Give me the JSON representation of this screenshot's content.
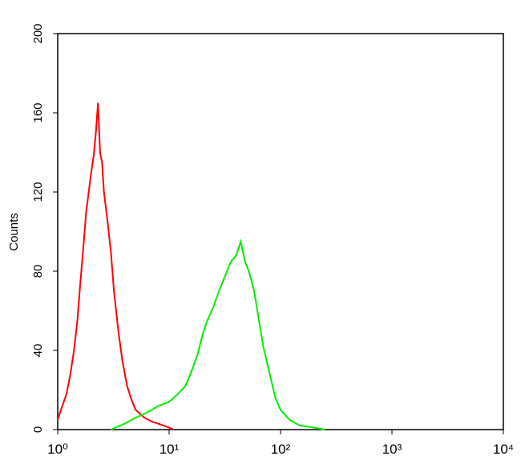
{
  "chart_data": {
    "type": "line",
    "y_label": "Counts",
    "x_scale": "log",
    "xlim": [
      1,
      10000
    ],
    "ylim": [
      0,
      200
    ],
    "xticks": [
      {
        "value": 1,
        "label": "10⁰"
      },
      {
        "value": 10,
        "label": "10¹"
      },
      {
        "value": 100,
        "label": "10²"
      },
      {
        "value": 1000,
        "label": "10³"
      },
      {
        "value": 10000,
        "label": "10⁴"
      }
    ],
    "yticks": [
      0,
      40,
      80,
      120,
      160,
      200
    ],
    "series": [
      {
        "color": "#ff0000",
        "x": [
          1.0,
          1.1,
          1.2,
          1.3,
          1.4,
          1.5,
          1.6,
          1.7,
          1.8,
          1.9,
          2.0,
          2.1,
          2.2,
          2.3,
          2.4,
          2.5,
          2.6,
          2.8,
          3.0,
          3.2,
          3.5,
          3.8,
          4.2,
          4.6,
          5.0,
          6,
          7,
          8,
          10,
          11
        ],
        "values": [
          5,
          12,
          18,
          28,
          40,
          55,
          75,
          92,
          110,
          120,
          130,
          138,
          150,
          165,
          140,
          135,
          120,
          105,
          90,
          70,
          50,
          35,
          22,
          15,
          10,
          6,
          4,
          3,
          1,
          0
        ]
      },
      {
        "color": "#00ee00",
        "x": [
          3,
          4,
          5,
          6,
          7,
          8,
          10,
          12,
          14,
          16,
          18,
          20,
          22,
          25,
          28,
          32,
          36,
          40,
          44,
          48,
          52,
          58,
          64,
          70,
          80,
          90,
          100,
          120,
          150,
          200,
          250
        ],
        "values": [
          0,
          3,
          6,
          8,
          10,
          12,
          14,
          18,
          22,
          30,
          38,
          48,
          55,
          62,
          70,
          78,
          85,
          88,
          95,
          85,
          80,
          70,
          55,
          42,
          28,
          16,
          10,
          5,
          2,
          1,
          0
        ]
      }
    ]
  }
}
